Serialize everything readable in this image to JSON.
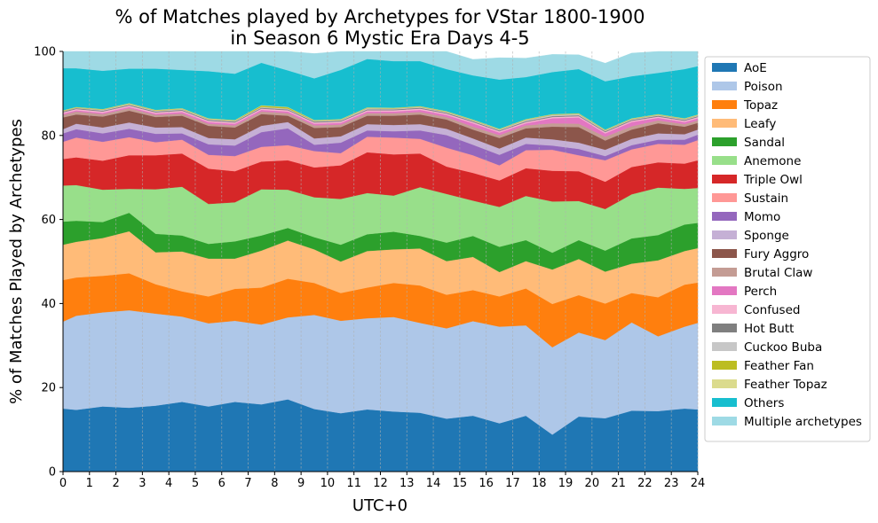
{
  "chart_data": {
    "type": "area",
    "title_line1": "% of Matches played by Archetypes for VStar 1800-1900",
    "title_line2": "in Season 6 Mystic Era Days 4-5",
    "xlabel": "UTC+0",
    "ylabel": "% of Matches Played by Archetypes",
    "xlim": [
      0,
      24
    ],
    "ylim": [
      0,
      100
    ],
    "x_ticks": [
      0,
      1,
      2,
      3,
      4,
      5,
      6,
      7,
      8,
      9,
      10,
      11,
      12,
      13,
      14,
      15,
      16,
      17,
      18,
      19,
      20,
      21,
      22,
      23,
      24
    ],
    "y_ticks": [
      0,
      20,
      40,
      60,
      80,
      100
    ],
    "grid": "vertical dashed",
    "legend_position": "right",
    "x": [
      0,
      0.5,
      1.5,
      2.5,
      3.5,
      4.5,
      5.5,
      6.5,
      7.5,
      8.5,
      9.5,
      10.5,
      11.5,
      12.5,
      13.5,
      14.5,
      15.5,
      16.5,
      17.5,
      18.5,
      19.5,
      20.5,
      21.5,
      22.5,
      23.5,
      24
    ],
    "series": [
      {
        "name": "AoE",
        "color": "#1f77b4",
        "values": [
          15.0,
          14.7,
          15.5,
          15.2,
          15.7,
          16.6,
          15.5,
          16.6,
          16.0,
          17.2,
          14.9,
          13.9,
          14.8,
          14.3,
          14.0,
          12.6,
          13.3,
          11.5,
          13.3,
          8.8,
          13.1,
          12.7,
          14.5,
          14.4,
          15.0,
          14.8
        ]
      },
      {
        "name": "Poison",
        "color": "#aec7e8",
        "values": [
          20.7,
          22.4,
          22.4,
          23.2,
          21.9,
          20.3,
          19.8,
          19.3,
          19.0,
          19.5,
          22.4,
          22.0,
          21.7,
          22.5,
          21.4,
          21.5,
          22.5,
          23.0,
          21.5,
          20.8,
          20.0,
          18.6,
          21.0,
          17.8,
          19.5,
          20.6
        ]
      },
      {
        "name": "Topaz",
        "color": "#ff7f0e",
        "values": [
          9.9,
          9.1,
          8.7,
          8.8,
          7.0,
          6.0,
          6.4,
          7.6,
          8.8,
          9.2,
          7.6,
          6.6,
          7.3,
          8.1,
          8.9,
          8.0,
          7.4,
          7.2,
          8.8,
          10.3,
          8.9,
          8.7,
          7.0,
          9.3,
          10.0,
          9.6
        ]
      },
      {
        "name": "Leafy",
        "color": "#ffbb78",
        "values": [
          8.4,
          8.5,
          9.0,
          10.0,
          7.6,
          9.5,
          9.0,
          7.2,
          8.8,
          9.1,
          8.0,
          7.5,
          8.7,
          8.0,
          8.8,
          8.0,
          7.9,
          5.8,
          6.5,
          8.2,
          8.6,
          7.6,
          7.0,
          8.8,
          8.0,
          8.2
        ]
      },
      {
        "name": "Sandal",
        "color": "#2ca02c",
        "values": [
          5.5,
          5.0,
          3.8,
          4.4,
          4.4,
          3.8,
          3.5,
          4.1,
          3.6,
          3.0,
          2.9,
          4.0,
          4.0,
          4.2,
          3.0,
          4.4,
          5.0,
          6.0,
          5.0,
          4.0,
          4.5,
          5.0,
          6.0,
          6.0,
          6.3,
          6.0
        ]
      },
      {
        "name": "Anemone",
        "color": "#98df8a",
        "values": [
          8.6,
          8.5,
          7.7,
          5.7,
          10.6,
          11.6,
          9.5,
          9.3,
          11.0,
          9.1,
          9.5,
          10.9,
          9.8,
          8.6,
          11.6,
          11.6,
          8.4,
          9.5,
          10.5,
          12.2,
          9.3,
          9.9,
          10.5,
          11.3,
          8.5,
          8.3
        ]
      },
      {
        "name": "Triple Owl",
        "color": "#d62728",
        "values": [
          6.3,
          6.6,
          6.9,
          8.0,
          8.1,
          7.9,
          8.4,
          7.4,
          6.6,
          7.0,
          7.1,
          8.0,
          9.7,
          9.8,
          8.0,
          6.5,
          6.6,
          6.3,
          6.6,
          7.3,
          7.1,
          6.5,
          6.5,
          6.0,
          6.0,
          6.6
        ]
      },
      {
        "name": "Sustain",
        "color": "#ff9896",
        "values": [
          4.1,
          4.7,
          4.5,
          4.3,
          3.1,
          3.3,
          3.3,
          3.6,
          3.5,
          3.6,
          3.9,
          2.9,
          3.7,
          4.0,
          3.5,
          4.5,
          4.2,
          3.6,
          4.3,
          5.0,
          3.8,
          5.1,
          4.2,
          4.4,
          4.5,
          4.8
        ]
      },
      {
        "name": "Momo",
        "color": "#9467bd",
        "values": [
          2.0,
          2.0,
          2.0,
          2.0,
          2.0,
          1.5,
          2.5,
          2.5,
          3.5,
          4.0,
          1.5,
          2.5,
          1.5,
          1.5,
          2.0,
          3.0,
          2.5,
          2.5,
          1.5,
          1.0,
          1.5,
          1.0,
          1.0,
          1.0,
          1.2,
          1.3
        ]
      },
      {
        "name": "Sponge",
        "color": "#c5b0d5",
        "values": [
          1.0,
          1.3,
          1.4,
          1.5,
          1.5,
          1.5,
          1.5,
          1.5,
          1.5,
          1.5,
          1.5,
          1.5,
          1.5,
          1.5,
          1.5,
          1.5,
          1.5,
          1.5,
          1.5,
          1.5,
          1.5,
          1.5,
          1.5,
          1.5,
          1.3,
          1.2
        ]
      },
      {
        "name": "Fury Aggro",
        "color": "#8c564b",
        "values": [
          2.8,
          2.2,
          2.6,
          2.8,
          2.5,
          2.7,
          2.9,
          2.8,
          2.8,
          1.5,
          2.5,
          2.2,
          2.0,
          2.2,
          2.3,
          2.2,
          2.1,
          2.5,
          2.2,
          3.0,
          3.7,
          2.2,
          2.2,
          2.4,
          1.8,
          1.6
        ]
      },
      {
        "name": "Brutal Claw",
        "color": "#c49c94",
        "values": [
          0.6,
          0.7,
          0.6,
          0.6,
          0.5,
          0.5,
          0.5,
          0.5,
          0.6,
          0.6,
          0.6,
          0.6,
          0.6,
          0.6,
          0.6,
          0.6,
          0.7,
          0.7,
          0.7,
          0.8,
          0.8,
          0.9,
          0.8,
          0.7,
          0.6,
          0.6
        ]
      },
      {
        "name": "Perch",
        "color": "#e377c2",
        "values": [
          0.3,
          0.3,
          0.3,
          0.3,
          0.3,
          0.4,
          0.4,
          0.4,
          0.4,
          0.4,
          0.4,
          0.4,
          0.4,
          0.4,
          0.5,
          0.5,
          0.8,
          0.6,
          0.5,
          1.2,
          1.5,
          0.8,
          1.0,
          0.6,
          0.5,
          0.5
        ]
      },
      {
        "name": "Confused",
        "color": "#f7b6d2",
        "values": [
          0.3,
          0.3,
          0.3,
          0.3,
          0.3,
          0.3,
          0.3,
          0.3,
          0.3,
          0.3,
          0.3,
          0.3,
          0.3,
          0.3,
          0.3,
          0.3,
          0.3,
          0.3,
          0.3,
          0.3,
          0.3,
          0.3,
          0.3,
          0.3,
          0.3,
          0.3
        ]
      },
      {
        "name": "Hot Butt",
        "color": "#7f7f7f",
        "values": [
          0.2,
          0.2,
          0.2,
          0.2,
          0.2,
          0.2,
          0.2,
          0.2,
          0.2,
          0.2,
          0.2,
          0.2,
          0.2,
          0.2,
          0.2,
          0.2,
          0.2,
          0.2,
          0.2,
          0.2,
          0.2,
          0.2,
          0.2,
          0.2,
          0.2,
          0.2
        ]
      },
      {
        "name": "Cuckoo Buba",
        "color": "#c7c7c7",
        "values": [
          0.1,
          0.1,
          0.2,
          0.2,
          0.2,
          0.2,
          0.2,
          0.2,
          0.2,
          0.2,
          0.2,
          0.2,
          0.3,
          0.2,
          0.2,
          0.2,
          0.2,
          0.2,
          0.3,
          0.3,
          0.3,
          0.2,
          0.2,
          0.2,
          0.2,
          0.2
        ]
      },
      {
        "name": "Feather Fan",
        "color": "#bcbd22",
        "values": [
          0.1,
          0.1,
          0.1,
          0.1,
          0.1,
          0.1,
          0.1,
          0.1,
          0.3,
          0.3,
          0.1,
          0.1,
          0.1,
          0.1,
          0.1,
          0.1,
          0.1,
          0.1,
          0.1,
          0.1,
          0.1,
          0.1,
          0.1,
          0.1,
          0.1,
          0.1
        ]
      },
      {
        "name": "Feather Topaz",
        "color": "#dbdb8d",
        "values": [
          0.1,
          0.1,
          0.1,
          0.1,
          0.1,
          0.1,
          0.1,
          0.1,
          0.1,
          0.1,
          0.1,
          0.1,
          0.1,
          0.1,
          0.1,
          0.1,
          0.1,
          0.1,
          0.1,
          0.1,
          0.1,
          0.1,
          0.1,
          0.1,
          0.1,
          0.1
        ]
      },
      {
        "name": "Others",
        "color": "#17becf",
        "values": [
          10.0,
          9.2,
          9.1,
          8.2,
          9.8,
          9.1,
          11.2,
          11.0,
          10.1,
          8.7,
          9.9,
          11.7,
          11.5,
          11.1,
          10.7,
          10.0,
          10.5,
          11.7,
          10.0,
          10.0,
          10.5,
          11.5,
          10.0,
          9.8,
          11.7,
          11.5
        ]
      },
      {
        "name": "Multiple archetypes",
        "color": "#9edae5",
        "values": [
          4.0,
          4.2,
          4.6,
          4.4,
          4.6,
          4.6,
          4.9,
          5.6,
          4.4,
          5.9,
          5.9,
          5.2,
          4.8,
          4.8,
          4.7,
          5.4,
          3.8,
          5.2,
          4.5,
          4.2,
          3.4,
          4.3,
          5.5,
          5.4,
          4.2,
          4.1
        ]
      }
    ]
  }
}
